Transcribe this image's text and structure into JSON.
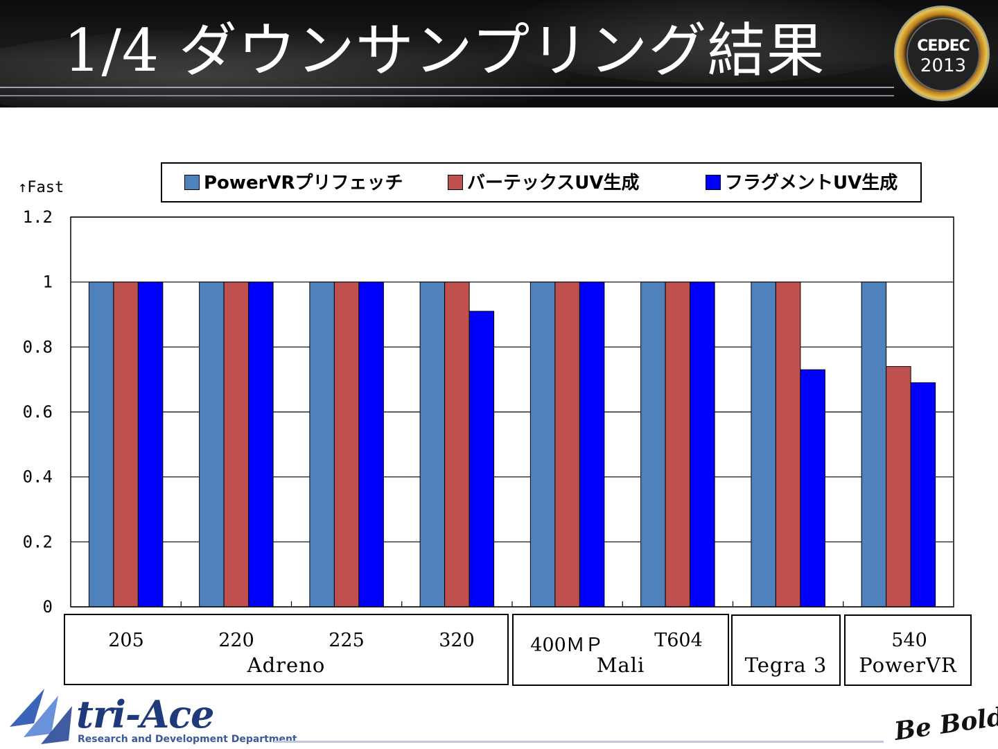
{
  "header": {
    "title": "1/4 ダウンサンプリング結果"
  },
  "logos": {
    "cedec_name": "CEDEC",
    "cedec_year": "2013",
    "company": "tri-Ace",
    "company_sub": "Research and Development Department",
    "slogan": "Be Bold!"
  },
  "colors": {
    "powervr_prefetch": "#4f81bd",
    "vertex_uv": "#c0504d",
    "fragment_uv": "#0000ff"
  },
  "chart_data": {
    "type": "bar",
    "ylabel": "↑Fast",
    "ylim": [
      0,
      1.2
    ],
    "yticks": [
      "0",
      "0.2",
      "0.4",
      "0.6",
      "0.8",
      "1",
      "1.2"
    ],
    "grid": true,
    "legend_position": "top",
    "categories": [
      "205",
      "220",
      "225",
      "320",
      "400ＭＰ",
      "T604",
      "",
      "540"
    ],
    "groups": [
      {
        "label": "Adreno",
        "categories": [
          "205",
          "220",
          "225",
          "320"
        ]
      },
      {
        "label": "Mali",
        "categories": [
          "400ＭＰ",
          "T604"
        ]
      },
      {
        "label": "Tegra 3",
        "categories": [
          ""
        ]
      },
      {
        "label": "PowerVR",
        "categories": [
          "540"
        ]
      }
    ],
    "series": [
      {
        "name": "PowerVRプリフェッチ",
        "values": [
          1,
          1,
          1,
          1,
          1,
          1,
          1,
          1
        ]
      },
      {
        "name": "バーテックスUV生成",
        "values": [
          1,
          1,
          1,
          1,
          1,
          1,
          1,
          0.74
        ]
      },
      {
        "name": "フラグメントUV生成",
        "values": [
          1,
          1,
          1,
          0.91,
          1,
          1,
          0.73,
          0.69
        ]
      }
    ]
  }
}
